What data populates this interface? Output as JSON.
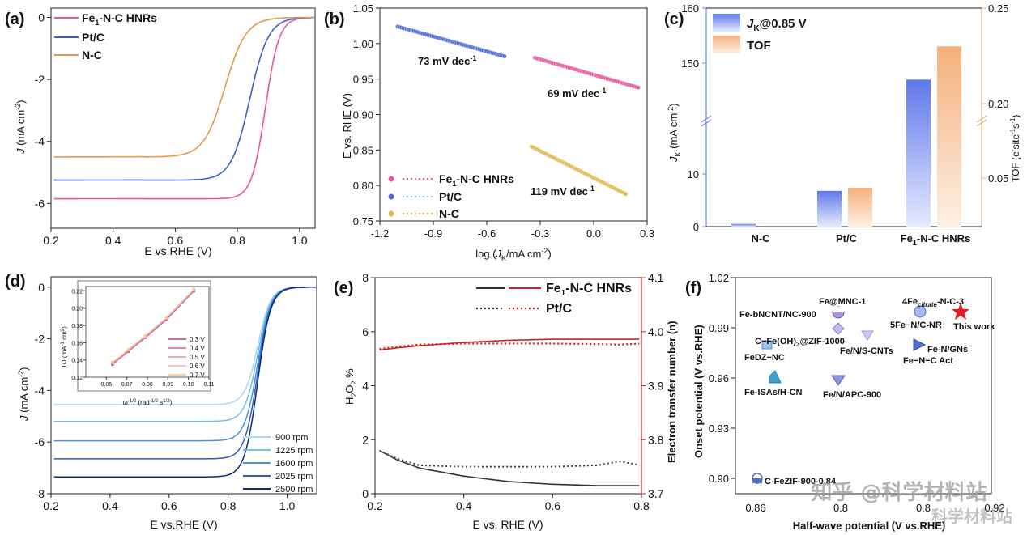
{
  "chart_data": [
    {
      "panel": "(a)",
      "type": "line",
      "xlabel": "E vs.RHE (V)",
      "ylabel": "J (mA cm⁻²)",
      "xlim": [
        0.2,
        1.05
      ],
      "ylim": [
        -6.8,
        0.3
      ],
      "xticks": [
        0.2,
        0.4,
        0.6,
        0.8,
        1.0
      ],
      "yticks": [
        0,
        -2,
        -4,
        -6
      ],
      "legend": "top-left",
      "series": [
        {
          "name": "Fe₁-N-C HNRs",
          "color": "#e8559e",
          "limit": -5.85,
          "half": 0.89,
          "width": 0.022
        },
        {
          "name": "Pt/C",
          "color": "#3a5fd0",
          "limit": -5.25,
          "half": 0.84,
          "width": 0.03
        },
        {
          "name": "N-C",
          "color": "#e09a4a",
          "limit": -4.5,
          "half": 0.76,
          "width": 0.034
        }
      ]
    },
    {
      "panel": "(b)",
      "type": "scatter",
      "xlabel": "log (J_K/mA cm⁻²)",
      "ylabel": "E vs. RHE (V)",
      "xlim": [
        -1.2,
        0.3
      ],
      "ylim": [
        0.75,
        1.05
      ],
      "xticks": [
        -1.2,
        -0.9,
        -0.6,
        -0.3,
        0.0,
        0.3
      ],
      "yticks": [
        0.75,
        0.8,
        0.85,
        0.9,
        0.95,
        1.0,
        1.05
      ],
      "legend": "bottom-left",
      "series": [
        {
          "name": "Fe₁-N-C HNRs",
          "color": "#e8559e",
          "x": [
            -0.33,
            0.25
          ],
          "y": [
            0.98,
            0.938
          ],
          "slope_label": "69 mV dec⁻¹"
        },
        {
          "name": "Pt/C",
          "color": "#4a6bd6",
          "x": [
            -1.1,
            -0.5
          ],
          "y": [
            1.024,
            0.982
          ],
          "slope_label": "73 mV dec⁻¹"
        },
        {
          "name": "N-C",
          "color": "#e0b84a",
          "x": [
            -0.35,
            0.18
          ],
          "y": [
            0.855,
            0.788
          ],
          "slope_label": "119 mV dec⁻¹"
        }
      ]
    },
    {
      "panel": "(c)",
      "type": "bar",
      "categories": [
        "N-C",
        "Pt/C",
        "Fe₁-N-C HNRs"
      ],
      "ylabel": "J_K (mA cm⁻²)",
      "y2label": "TOF (e⁻site⁻¹ s⁻¹)",
      "yticks_low": [
        0,
        10
      ],
      "yticks_high": [
        150,
        160
      ],
      "y2ticks": [
        0.05,
        0.2,
        0.25
      ],
      "legend": "top-left",
      "series": [
        {
          "name": "J_K@0.85 V",
          "values": [
            0.5,
            6.8,
            147
          ],
          "color": "#6f86ee"
        },
        {
          "name": "TOF",
          "values": [
            0.0,
            0.04,
            0.23
          ],
          "color": "#f5b98a"
        }
      ]
    },
    {
      "panel": "(d)",
      "type": "line",
      "xlabel": "E vs.RHE (V)",
      "ylabel": "J (mA cm⁻²)",
      "xlim": [
        0.2,
        1.1
      ],
      "ylim": [
        -8,
        0.4
      ],
      "xticks": [
        0.2,
        0.4,
        0.6,
        0.8,
        1.0
      ],
      "yticks": [
        0,
        -2,
        -4,
        -6,
        -8
      ],
      "legend": "bottom-right",
      "series": [
        {
          "name": "900   rpm",
          "color": "#a8d8f0",
          "limit": -4.55
        },
        {
          "name": "1225 rpm",
          "color": "#6ec0e8",
          "limit": -5.2
        },
        {
          "name": "1600 rpm",
          "color": "#4a92d8",
          "limit": -5.95
        },
        {
          "name": "2025 rpm",
          "color": "#2a5fb8",
          "limit": -6.65
        },
        {
          "name": "2500 rpm",
          "color": "#0c2a80",
          "limit": -7.35
        }
      ],
      "inset": {
        "xlabel": "ω^-1/2 (rad^-1/2 s^1/2)",
        "ylabel": "1/J (mA⁻¹ cm²)",
        "xlim": [
          0.05,
          0.11
        ],
        "ylim": [
          0.12,
          0.225
        ],
        "xticks": [
          0.06,
          0.07,
          0.08,
          0.09,
          0.1,
          0.11
        ],
        "yticks": [
          0.12,
          0.14,
          0.16,
          0.18,
          0.2,
          0.22
        ],
        "series": [
          {
            "name": "0.3 V",
            "color": "#b0407a"
          },
          {
            "name": "0.4 V",
            "color": "#d060a0"
          },
          {
            "name": "0.5 V",
            "color": "#e088b8"
          },
          {
            "name": "0.6 V",
            "color": "#f0b0c8"
          },
          {
            "name": "0.7 V",
            "color": "#f5c890"
          }
        ],
        "x": [
          0.063,
          0.0707,
          0.0791,
          0.0893,
          0.1027
        ],
        "y": [
          0.136,
          0.151,
          0.167,
          0.188,
          0.221
        ]
      }
    },
    {
      "panel": "(e)",
      "type": "line",
      "xlabel": "E vs. RHE (V)",
      "ylabel": "H₂O₂ %",
      "y2label": "Electron transfer number (n)",
      "xlim": [
        0.2,
        0.8
      ],
      "ylim": [
        0,
        8
      ],
      "y2lim": [
        3.7,
        4.1
      ],
      "xticks": [
        0.2,
        0.4,
        0.6,
        0.8
      ],
      "yticks": [
        0,
        2,
        4,
        6,
        8
      ],
      "y2ticks": [
        3.7,
        3.8,
        3.9,
        4.0,
        4.1
      ],
      "legend": "top-right",
      "series": [
        {
          "name": "Fe₁-N-C HNRs",
          "h2o2_x": [
            0.21,
            0.25,
            0.3,
            0.4,
            0.5,
            0.6,
            0.7,
            0.8
          ],
          "h2o2_y": [
            1.6,
            1.25,
            0.95,
            0.65,
            0.45,
            0.35,
            0.3,
            0.3
          ],
          "n_y": [
            3.966,
            3.97,
            3.974,
            3.98,
            3.984,
            3.986,
            3.986,
            3.986
          ]
        },
        {
          "name": "Pt/C",
          "h2o2_x": [
            0.21,
            0.25,
            0.3,
            0.4,
            0.5,
            0.6,
            0.7,
            0.75,
            0.8
          ],
          "h2o2_y": [
            1.6,
            1.3,
            1.05,
            1.0,
            1.0,
            1.0,
            1.05,
            1.2,
            1.05
          ],
          "n_y": [
            3.968,
            3.972,
            3.976,
            3.978,
            3.978,
            3.978,
            3.977,
            3.976,
            3.978
          ]
        }
      ]
    },
    {
      "panel": "(f)",
      "type": "scatter",
      "xlabel": "Half-wave potential (V vs.RHE)",
      "ylabel": "Onset potential (V vs.RHE)",
      "xlim": [
        0.855,
        0.92
      ],
      "ylim": [
        0.885,
        1.02
      ],
      "xticks_visible": [
        "0.86",
        "0.8",
        "0.8",
        "0.92"
      ],
      "yticks": [
        0.9,
        0.93,
        0.96,
        0.99,
        1.02
      ],
      "points": [
        {
          "label": "Fe@MNC-1",
          "x": 0.876,
          "y": 1.0,
          "color": "#a080d0"
        },
        {
          "label": "Fe-bNCNT/NC-900",
          "x": 0.876,
          "y": 0.998,
          "color": "#a080d0"
        },
        {
          "label": "4Fe-citrate-N-C-3",
          "x": 0.898,
          "y": 1.0,
          "color": "#7090d0"
        },
        {
          "label": "5Fe-N/C-NR",
          "x": 0.899,
          "y": 0.996,
          "color": "#7090d0"
        },
        {
          "label": "This work",
          "x": 0.906,
          "y": 1.0,
          "color": "#e02020"
        },
        {
          "label": "C-Fe(OH)₃@ZIF-1000",
          "x": 0.876,
          "y": 0.99,
          "color": "#b0a0e0"
        },
        {
          "label": "FeDZ-NC",
          "x": 0.866,
          "y": 0.981,
          "color": "#70a0d0"
        },
        {
          "label": "Fe/N/S-CNTs",
          "x": 0.881,
          "y": 0.986,
          "color": "#b0a8e8"
        },
        {
          "label": "Fe-N/GNs",
          "x": 0.898,
          "y": 0.981,
          "color": "#5070d0"
        },
        {
          "label": "Fe-N-C Act",
          "x": 0.897,
          "y": 0.98,
          "color": "#5070d0"
        },
        {
          "label": "Fe-ISAs/H-CN",
          "x": 0.868,
          "y": 0.96,
          "color": "#40a0d0"
        },
        {
          "label": "Fe/N/APC-900",
          "x": 0.877,
          "y": 0.959,
          "color": "#7080d8"
        },
        {
          "label": "C-FeZIF-900-0.84",
          "x": 0.863,
          "y": 0.9,
          "color": "#5070c0"
        }
      ]
    }
  ],
  "labels": {
    "a": {
      "panel": "(a)",
      "xlabel": "E vs.RHE (V)",
      "ylabel_main": "J",
      "ylabel_unit": " (mA cm",
      "ylabel_sup": "-2",
      "ylabel_end": ")",
      "legend": [
        "Fe",
        "1",
        "-N-C HNRs",
        "Pt/C",
        "N-C"
      ]
    },
    "b": {
      "panel": "(b)",
      "xlabel_pre": "log (",
      "xlabel_j": "J",
      "xlabel_k": "K",
      "xlabel_post": "/mA cm",
      "xlabel_sup": "-2",
      "xlabel_end": ")",
      "ylabel": "E vs. RHE (V)",
      "slope1": "73 mV dec",
      "slope2": "69 mV dec",
      "slope3": "119 mV dec",
      "sup": "-1",
      "legend": [
        "Fe",
        "1",
        "-N-C HNRs",
        "Pt/C",
        "N-C"
      ]
    },
    "c": {
      "panel": "(c)",
      "legend1_j": "J",
      "legend1_k": "K",
      "legend1_rest": "@0.85 V",
      "legend2": "TOF",
      "ylabel_j": "J",
      "ylabel_k": "K",
      "ylabel_rest": " (mA cm",
      "ylabel_sup": "-2",
      "ylabel_end": ")",
      "y2label": "TOF (e",
      "y2label_sup1": "-",
      "y2label_mid": "site",
      "y2label_sup2": "-1",
      "y2label_mid2": "s",
      "y2label_sup3": "-1",
      "y2label_end": ")",
      "cats": [
        "N-C",
        "Pt/C",
        "Fe",
        "1",
        "-N-C HNRs"
      ],
      "yt": [
        "0",
        "10",
        "150",
        "160"
      ],
      "y2t": [
        "0.05",
        "0.20",
        "0.25"
      ]
    },
    "d": {
      "panel": "(d)",
      "xlabel": "E vs.RHE (V)",
      "ylabel_main": "J",
      "ylabel_unit": " (mA cm",
      "ylabel_sup": "-2",
      "ylabel_end": ")",
      "inset_ylabel": "1/J (mA",
      "inset_ylabel_sup": "-1",
      "inset_ylabel_end": " cm",
      "inset_ylabel_sup2": "2",
      "inset_ylabel_close": ")",
      "inset_xlabel_w": "ω",
      "inset_xlabel_sup": "-1/2",
      "inset_xlabel_mid": " (rad",
      "inset_xlabel_sup2": "-1/2",
      "inset_xlabel_s": " s",
      "inset_xlabel_sup3": "1/2",
      "inset_xlabel_end": ")",
      "inset_legend": [
        "0.3 V",
        "0.4 V",
        "0.5 V",
        "0.6 V",
        "0.7 V"
      ],
      "inset_xt": [
        "0.06",
        "0.07",
        "0.08",
        "0.09",
        "0.10",
        "0.11"
      ],
      "inset_yt": [
        "0.12",
        "0.14",
        "0.16",
        "0.18",
        "0.20",
        "0.22"
      ],
      "legend": [
        "900   rpm",
        "1225 rpm",
        "1600 rpm",
        "2025 rpm",
        "2500 rpm"
      ]
    },
    "e": {
      "panel": "(e)",
      "xlabel": "E vs. RHE (V)",
      "ylabel_pre": "H",
      "ylabel_sub": "2",
      "ylabel_o": "O",
      "ylabel_sub2": "2",
      "ylabel_end": " %",
      "y2label": "Electron transfer number (n)",
      "legend": [
        "Fe",
        "1",
        "-N-C HNRs",
        "Pt/C"
      ]
    },
    "f": {
      "panel": "(f)",
      "xlabel": "Half-wave potential (V vs.RHE)",
      "ylabel": "Onset potential (V vs.RHE)",
      "pt_labels": [
        "Fe@MNC-1",
        "Fe-bNCNT/NC-900",
        "4Fe",
        "citrate",
        "-N-C-3",
        "5Fe−N/C-NR",
        "This work",
        "C−Fe(OH)",
        "3",
        "@ZIF-1000",
        "FeDZ−NC",
        "Fe/N/S-CNTs",
        "Fe-N/GNs",
        "Fe−N−C Act",
        "Fe-ISAs/H-CN",
        "Fe/N/APC-900",
        "C-FeZIF-900-0.84"
      ],
      "xt": [
        "0.86",
        "0.8",
        "0.8",
        "0.92"
      ],
      "yt": [
        "0.90",
        "0.93",
        "0.96",
        "0.99",
        "1.02"
      ]
    },
    "watermark1": "知乎 @科学材料站",
    "watermark2": "科学材料站"
  },
  "ticks": {
    "a_x": [
      "0.2",
      "0.4",
      "0.6",
      "0.8",
      "1.0"
    ],
    "a_y": [
      "0",
      "-2",
      "-4",
      "-6"
    ],
    "b_x": [
      "-1.2",
      "-0.9",
      "-0.6",
      "-0.3",
      "0.0",
      "0.3"
    ],
    "b_y": [
      "0.75",
      "0.80",
      "0.85",
      "0.90",
      "0.95",
      "1.00",
      "1.05"
    ],
    "d_x": [
      "0.2",
      "0.4",
      "0.6",
      "0.8",
      "1.0"
    ],
    "d_y": [
      "0",
      "-2",
      "-4",
      "-6",
      "-8"
    ],
    "e_x": [
      "0.2",
      "0.4",
      "0.6",
      "0.8"
    ],
    "e_y": [
      "0",
      "2",
      "4",
      "6",
      "8"
    ],
    "e_y2": [
      "3.7",
      "3.8",
      "3.9",
      "4.0",
      "4.1"
    ]
  }
}
